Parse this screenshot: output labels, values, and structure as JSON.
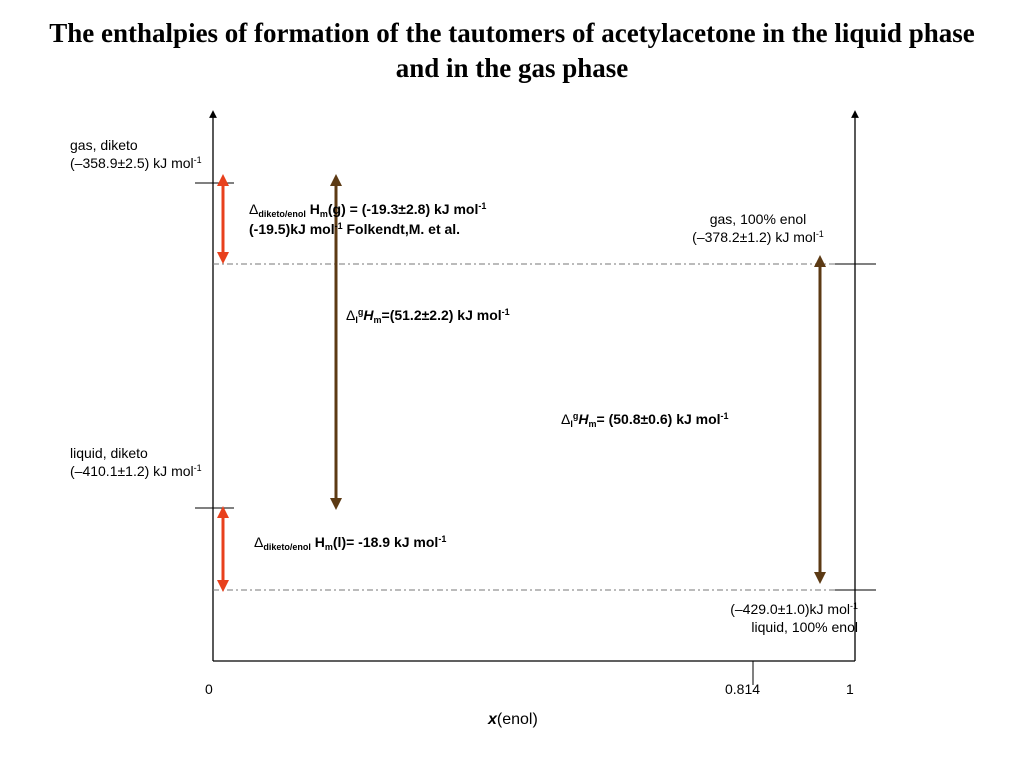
{
  "title": {
    "line1": "The enthalpies of formation of the tautomers of acetylacetone in the liquid phase",
    "line2": "and in the gas phase"
  },
  "left_states": {
    "gas_diketo": {
      "name": "gas, diketo",
      "value": "(–358.9±2.5) kJ mol",
      "exp": "-1"
    },
    "liquid_diketo": {
      "name": "liquid, diketo",
      "value": "(–410.1±1.2) kJ mol",
      "exp": "-1"
    }
  },
  "right_states": {
    "gas_enol": {
      "name": "gas, 100% enol",
      "value": "(–378.2±1.2) kJ mol",
      "exp": "-1"
    },
    "liquid_enol": {
      "value": "(–429.0±1.0)kJ mol",
      "exp": "-1",
      "name": "liquid, 100% enol"
    }
  },
  "annotations": {
    "gas_tautomer": {
      "delta": "Δ",
      "sub": "diketo/enol",
      "mid": " H",
      "sub2": "m",
      "expr": "(g) = (-19.3±2.8) kJ mol",
      "exp": "-1",
      "line2": "(-19.5)kJ mol",
      "line2_exp": "-1",
      "line2_tail": " Folkendt,M. et al."
    },
    "vap_diketo": {
      "delta": "Δ",
      "sub_l": "l",
      "sup_g": "g",
      "H": "H",
      "sub_m": "m",
      "expr": "=(51.2±2.2) kJ mol",
      "exp": "-1"
    },
    "vap_enol": {
      "delta": "Δ",
      "sub_l": "l",
      "sup_g": "g",
      "H": "H",
      "sub_m": "m",
      "expr": "= (50.8±0.6) kJ mol",
      "exp": "-1"
    },
    "liquid_tautomer": {
      "delta": "Δ",
      "sub": "diketo/enol",
      "mid": " H",
      "sub2": "m",
      "expr": "(l)= -18.9 kJ mol",
      "exp": "-1"
    }
  },
  "axis": {
    "ticks": [
      "0",
      "0.814",
      "1"
    ],
    "xlabel_var": "x",
    "xlabel_rest": "(enol)"
  },
  "colors": {
    "red_arrow": "#e8401c",
    "brown_arrow": "#5c3a14",
    "axis": "#000000",
    "dashed": "#888888"
  }
}
